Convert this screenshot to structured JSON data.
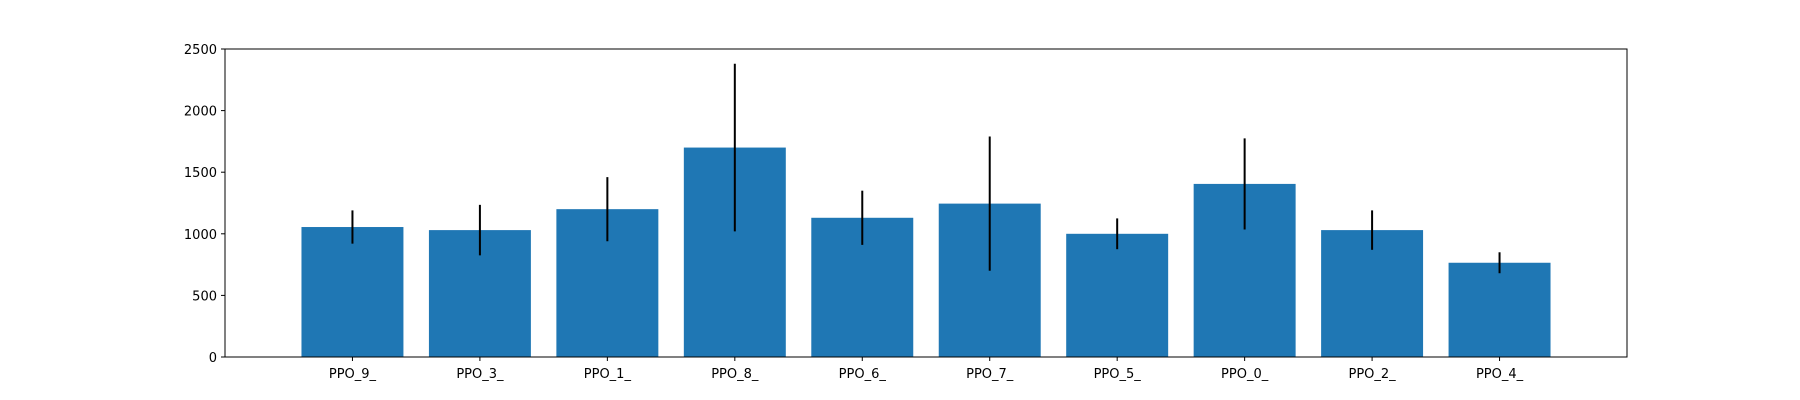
{
  "chart_data": {
    "type": "bar",
    "title": "",
    "xlabel": "",
    "ylabel": "",
    "categories": [
      "PPO_9_",
      "PPO_3_",
      "PPO_1_",
      "PPO_8_",
      "PPO_6_",
      "PPO_7_",
      "PPO_5_",
      "PPO_0_",
      "PPO_2_",
      "PPO_4_"
    ],
    "values": [
      1055,
      1030,
      1200,
      1700,
      1130,
      1245,
      1000,
      1405,
      1030,
      765
    ],
    "errors": [
      135,
      205,
      260,
      680,
      220,
      545,
      125,
      370,
      160,
      85
    ],
    "ylim": [
      0,
      2500
    ],
    "yticks": [
      0,
      500,
      1000,
      1500,
      2000,
      2500
    ],
    "grid": false,
    "colors": {
      "bar": "#1f77b4",
      "error_bar": "#000000",
      "axis": "#000000"
    }
  }
}
